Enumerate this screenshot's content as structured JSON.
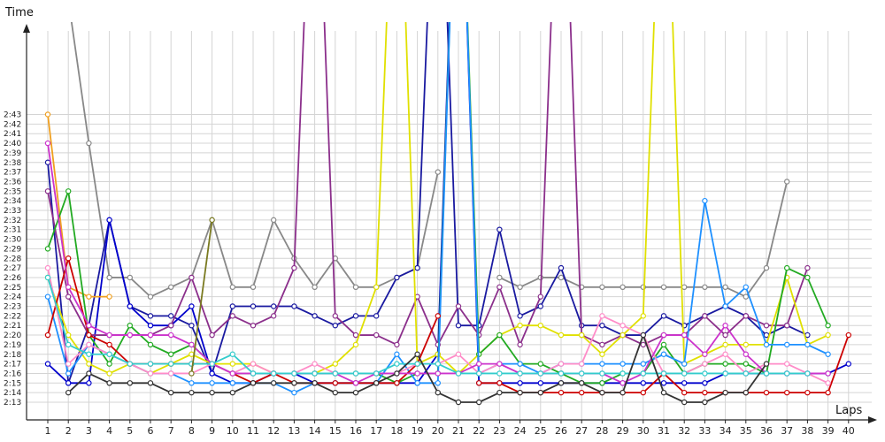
{
  "chart_data": {
    "type": "line",
    "title": "",
    "xlabel": "Laps",
    "ylabel": "Time",
    "xlim": [
      0,
      40
    ],
    "ylim": [
      "2:12",
      "2:44"
    ],
    "grid": true,
    "legend": "none",
    "x_ticks": [
      "1",
      "2",
      "3",
      "4",
      "5",
      "6",
      "7",
      "8",
      "9",
      "10",
      "11",
      "12",
      "13",
      "14",
      "15",
      "16",
      "17",
      "18",
      "19",
      "20",
      "21",
      "22",
      "23",
      "24",
      "25",
      "26",
      "27",
      "28",
      "29",
      "30",
      "31",
      "32",
      "33",
      "34",
      "35",
      "36",
      "37",
      "38",
      "39",
      "40"
    ],
    "y_ticks": [
      "2:13",
      "2:14",
      "2:15",
      "2:16",
      "2:17",
      "2:18",
      "2:19",
      "2:20",
      "2:21",
      "2:22",
      "2:23",
      "2:24",
      "2:25",
      "2:26",
      "2:27",
      "2:28",
      "2:29",
      "2:30",
      "2:31",
      "2:32",
      "2:33",
      "2:34",
      "2:35",
      "2:36",
      "2:37",
      "2:38",
      "2:39",
      "2:40",
      "2:41",
      "2:42",
      "2:43"
    ],
    "series": [
      {
        "color": "#888888",
        "values": [
          null,
          175,
          160,
          146,
          146,
          144,
          145,
          146,
          152,
          145,
          145,
          152,
          148,
          145,
          148,
          145,
          145,
          146,
          147,
          157,
          null,
          null,
          146,
          145,
          146,
          146,
          145,
          145,
          145,
          145,
          145,
          145,
          145,
          145,
          144,
          147,
          156,
          null,
          null,
          null
        ]
      },
      {
        "color": "#1a1aa0",
        "values": [
          158,
          135,
          141,
          152,
          143,
          142,
          142,
          141,
          136,
          143,
          143,
          143,
          143,
          142,
          141,
          142,
          142,
          146,
          147,
          200,
          141,
          141,
          151,
          142,
          143,
          147,
          141,
          141,
          140,
          140,
          142,
          141,
          142,
          143,
          142,
          140,
          141,
          140,
          null,
          null
        ]
      },
      {
        "color": "#0000cc",
        "values": [
          137,
          135,
          135,
          152,
          143,
          141,
          141,
          143,
          136,
          135,
          135,
          136,
          136,
          135,
          135,
          135,
          135,
          135,
          135,
          138,
          200,
          135,
          135,
          135,
          135,
          135,
          135,
          135,
          135,
          135,
          135,
          135,
          135,
          136,
          136,
          136,
          136,
          136,
          136,
          137
        ]
      },
      {
        "color": "#8b2f8b",
        "values": [
          155,
          144,
          140,
          140,
          140,
          140,
          141,
          146,
          140,
          142,
          141,
          142,
          147,
          200,
          142,
          140,
          140,
          139,
          144,
          139,
          143,
          140,
          145,
          139,
          144,
          200,
          140,
          139,
          140,
          139,
          140,
          140,
          142,
          140,
          142,
          141,
          141,
          147,
          null,
          null
        ]
      },
      {
        "color": "#f0a020",
        "values": [
          163,
          145,
          144,
          144,
          null,
          null,
          null,
          null,
          null,
          null,
          null,
          null,
          null,
          null,
          null,
          null,
          null,
          null,
          null,
          null,
          null,
          null,
          null,
          null,
          null,
          null,
          null,
          null,
          null,
          null,
          null,
          null,
          null,
          null,
          null,
          null,
          null,
          null,
          null,
          null
        ]
      },
      {
        "color": "#e0e000",
        "values": [
          146,
          140,
          137,
          136,
          137,
          136,
          137,
          138,
          137,
          137,
          137,
          136,
          136,
          136,
          137,
          139,
          145,
          200,
          137,
          138,
          136,
          138,
          140,
          141,
          141,
          140,
          140,
          138,
          140,
          142,
          200,
          137,
          138,
          139,
          139,
          139,
          146,
          139,
          140,
          null
        ]
      },
      {
        "color": "#22aa22",
        "values": [
          149,
          155,
          140,
          137,
          141,
          139,
          138,
          139,
          137,
          136,
          136,
          136,
          136,
          136,
          136,
          136,
          136,
          135,
          136,
          136,
          200,
          138,
          140,
          137,
          137,
          136,
          135,
          135,
          136,
          136,
          139,
          136,
          137,
          137,
          137,
          136,
          147,
          146,
          141,
          null
        ]
      },
      {
        "color": "#1e90ff",
        "values": [
          144,
          136,
          139,
          138,
          137,
          136,
          136,
          135,
          135,
          135,
          135,
          135,
          134,
          135,
          135,
          135,
          135,
          138,
          135,
          135,
          200,
          136,
          137,
          137,
          136,
          137,
          137,
          137,
          137,
          137,
          138,
          137,
          154,
          143,
          145,
          139,
          139,
          139,
          138,
          null
        ]
      },
      {
        "color": "#cc0000",
        "values": [
          140,
          148,
          140,
          139,
          137,
          137,
          137,
          137,
          137,
          136,
          135,
          136,
          135,
          135,
          135,
          135,
          135,
          135,
          137,
          142,
          null,
          135,
          135,
          134,
          134,
          134,
          134,
          134,
          134,
          134,
          136,
          134,
          134,
          134,
          134,
          134,
          134,
          134,
          134,
          140
        ]
      },
      {
        "color": "#ff8cc8",
        "values": [
          147,
          137,
          139,
          138,
          137,
          136,
          136,
          136,
          137,
          136,
          137,
          136,
          136,
          137,
          136,
          136,
          136,
          136,
          137,
          137,
          138,
          136,
          137,
          136,
          136,
          137,
          137,
          142,
          141,
          140,
          136,
          136,
          137,
          138,
          136,
          137,
          137,
          136,
          135,
          null
        ]
      },
      {
        "color": "#cc33cc",
        "values": [
          160,
          145,
          141,
          140,
          140,
          140,
          140,
          139,
          137,
          136,
          136,
          136,
          136,
          136,
          136,
          135,
          136,
          136,
          136,
          136,
          136,
          137,
          137,
          136,
          136,
          136,
          136,
          136,
          135,
          136,
          140,
          140,
          138,
          141,
          138,
          136,
          136,
          136,
          136,
          null
        ]
      },
      {
        "color": "#33cccc",
        "values": [
          146,
          139,
          138,
          138,
          137,
          137,
          137,
          137,
          137,
          138,
          136,
          136,
          136,
          136,
          136,
          136,
          136,
          137,
          137,
          137,
          136,
          136,
          136,
          136,
          136,
          136,
          136,
          136,
          136,
          136,
          136,
          136,
          136,
          136,
          136,
          136,
          136,
          136,
          null,
          null
        ]
      },
      {
        "color": "#333333",
        "values": [
          null,
          134,
          136,
          135,
          135,
          135,
          134,
          134,
          134,
          134,
          135,
          135,
          135,
          135,
          134,
          134,
          135,
          136,
          138,
          134,
          133,
          133,
          134,
          134,
          134,
          135,
          135,
          134,
          134,
          140,
          134,
          133,
          133,
          134,
          134,
          137,
          null,
          null,
          null,
          null
        ]
      },
      {
        "color": "#7a7a20",
        "values": [
          null,
          null,
          null,
          null,
          null,
          null,
          null,
          136,
          152,
          null,
          null,
          null,
          null,
          null,
          null,
          null,
          null,
          null,
          null,
          null,
          null,
          null,
          null,
          null,
          null,
          null,
          null,
          null,
          null,
          null,
          null,
          null,
          null,
          null,
          null,
          null,
          null,
          null,
          null,
          null
        ]
      }
    ]
  }
}
